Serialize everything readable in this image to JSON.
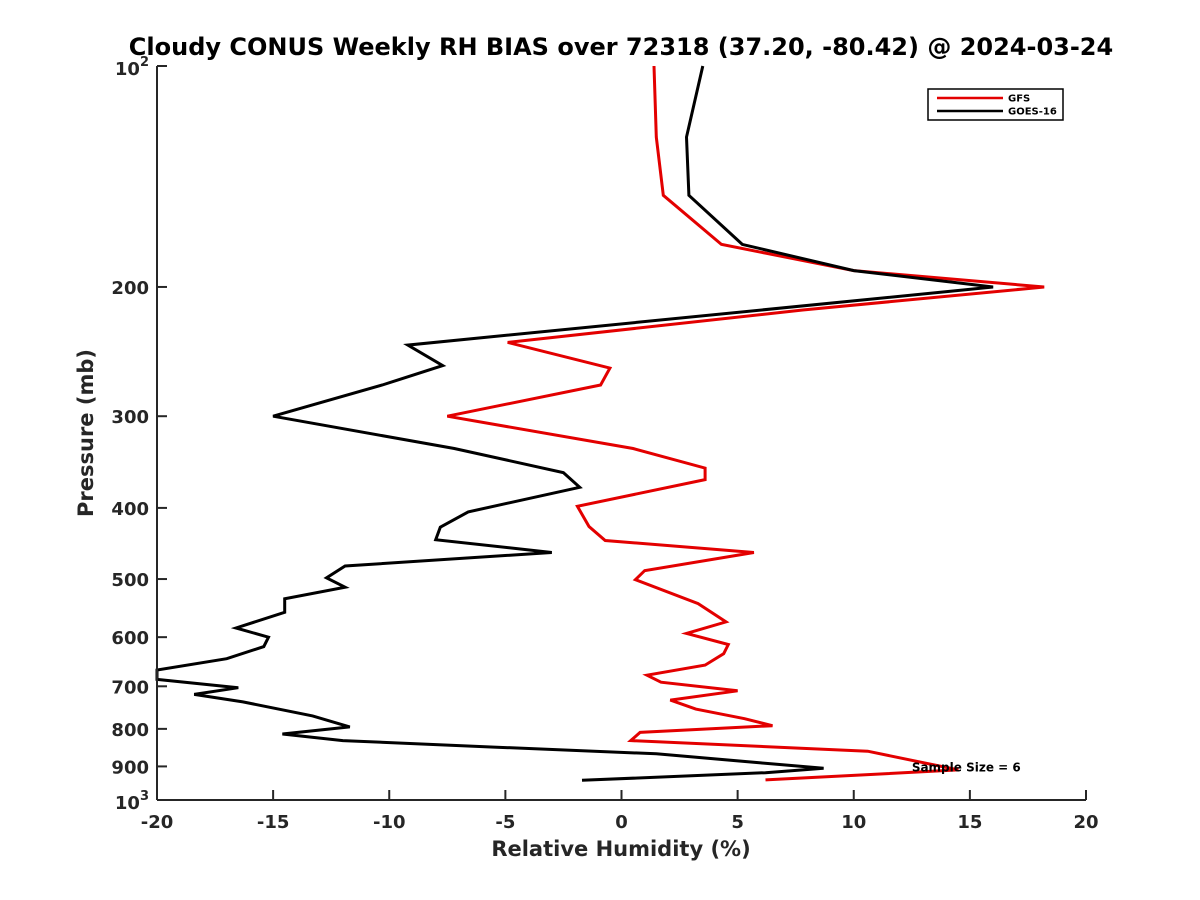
{
  "chart_data": {
    "type": "line",
    "title": "Cloudy CONUS Weekly RH BIAS over 72318 (37.20, -80.42) @ 2024-03-24",
    "xlabel": "Relative Humidity (%)",
    "ylabel": "Pressure (mb)",
    "xlim": [
      -20,
      20
    ],
    "ylim": [
      100,
      1000
    ],
    "yscale": "log",
    "yreversed": true,
    "grid": false,
    "legend_position": "top-right",
    "x_ticks": [
      "-20",
      "-15",
      "-10",
      "-5",
      "0",
      "5",
      "10",
      "15",
      "20"
    ],
    "y_ticks": [
      {
        "value": 100,
        "base": "10",
        "exp": "2"
      },
      {
        "value": 200,
        "label": "200"
      },
      {
        "value": 300,
        "label": "300"
      },
      {
        "value": 400,
        "label": "400"
      },
      {
        "value": 500,
        "label": "500"
      },
      {
        "value": 600,
        "label": "600"
      },
      {
        "value": 700,
        "label": "700"
      },
      {
        "value": 800,
        "label": "800"
      },
      {
        "value": 900,
        "label": "900"
      },
      {
        "value": 1000,
        "base": "10",
        "exp": "3"
      }
    ],
    "series": [
      {
        "name": "GFS",
        "color": "#e30000",
        "points": [
          [
            1.4,
            100
          ],
          [
            1.5,
            125
          ],
          [
            1.8,
            150
          ],
          [
            4.3,
            175
          ],
          [
            10.0,
            190
          ],
          [
            18.2,
            200
          ],
          [
            7.8,
            215
          ],
          [
            -4.9,
            238
          ],
          [
            -0.5,
            258
          ],
          [
            -0.9,
            272
          ],
          [
            -7.5,
            300
          ],
          [
            0.5,
            332
          ],
          [
            3.6,
            353
          ],
          [
            3.6,
            366
          ],
          [
            -1.9,
            398
          ],
          [
            -1.4,
            424
          ],
          [
            -0.7,
            443
          ],
          [
            5.7,
            460
          ],
          [
            1.0,
            487
          ],
          [
            0.6,
            501
          ],
          [
            3.3,
            540
          ],
          [
            4.5,
            572
          ],
          [
            2.8,
            593
          ],
          [
            4.6,
            614
          ],
          [
            4.4,
            632
          ],
          [
            3.6,
            655
          ],
          [
            1.1,
            676
          ],
          [
            1.7,
            691
          ],
          [
            5.0,
            710
          ],
          [
            2.1,
            731
          ],
          [
            3.2,
            752
          ],
          [
            5.3,
            775
          ],
          [
            6.5,
            792
          ],
          [
            0.8,
            809
          ],
          [
            0.4,
            830
          ],
          [
            10.6,
            858
          ],
          [
            14.5,
            910
          ],
          [
            6.2,
            939
          ]
        ]
      },
      {
        "name": "GOES-16",
        "color": "#000000",
        "points": [
          [
            3.5,
            100
          ],
          [
            2.8,
            125
          ],
          [
            2.9,
            150
          ],
          [
            5.2,
            175
          ],
          [
            10.0,
            190
          ],
          [
            16.0,
            200
          ],
          [
            -9.2,
            240
          ],
          [
            -7.7,
            256
          ],
          [
            -10.3,
            272
          ],
          [
            -15.0,
            300
          ],
          [
            -7.2,
            332
          ],
          [
            -2.5,
            358
          ],
          [
            -1.8,
            375
          ],
          [
            -6.6,
            405
          ],
          [
            -7.8,
            425
          ],
          [
            -8.0,
            442
          ],
          [
            -3.0,
            460
          ],
          [
            -11.9,
            480
          ],
          [
            -12.7,
            498
          ],
          [
            -11.9,
            513
          ],
          [
            -14.5,
            532
          ],
          [
            -14.5,
            555
          ],
          [
            -16.6,
            583
          ],
          [
            -15.2,
            600
          ],
          [
            -15.4,
            618
          ],
          [
            -17.0,
            642
          ],
          [
            -20.0,
            665
          ],
          [
            -20.0,
            685
          ],
          [
            -16.5,
            703
          ],
          [
            -18.4,
            718
          ],
          [
            -16.3,
            735
          ],
          [
            -13.3,
            768
          ],
          [
            -11.7,
            795
          ],
          [
            -14.6,
            813
          ],
          [
            -12.0,
            830
          ],
          [
            -5.5,
            847
          ],
          [
            1.5,
            865
          ],
          [
            6.0,
            890
          ],
          [
            8.7,
            905
          ],
          [
            6.2,
            918
          ],
          [
            -1.7,
            940
          ]
        ]
      }
    ],
    "annotations": [
      {
        "text": "Sample Size = 6",
        "x": 12.5,
        "y": 903
      }
    ]
  }
}
